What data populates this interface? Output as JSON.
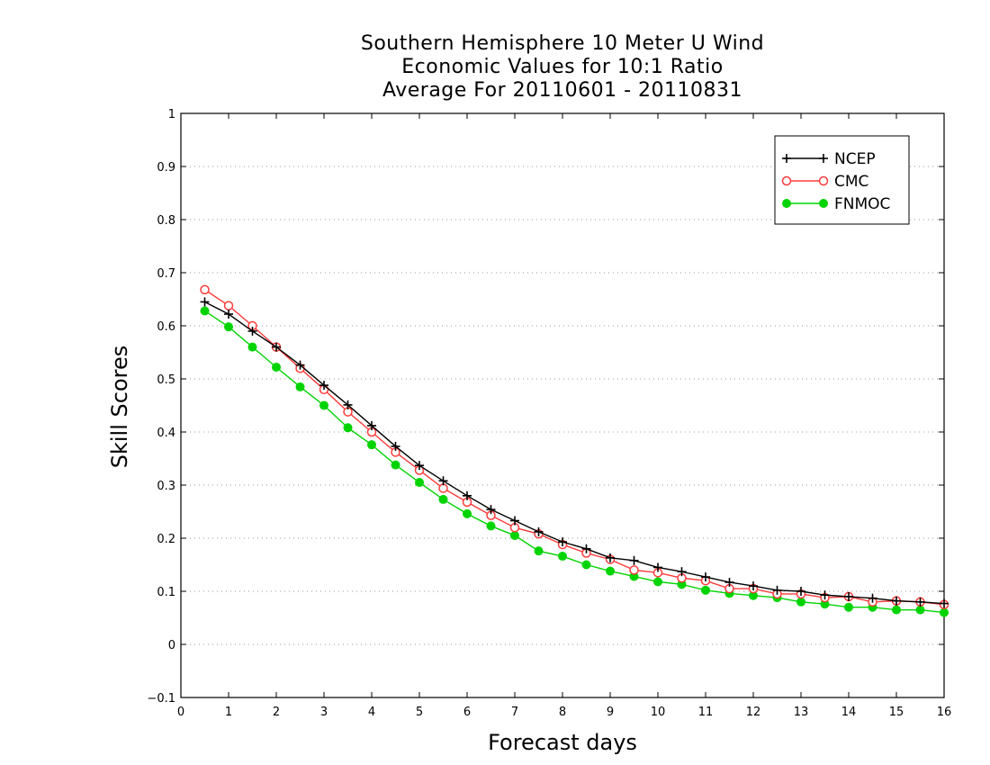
{
  "chart_data": {
    "type": "line",
    "title_lines": [
      "Southern Hemisphere 10 Meter U Wind",
      "Economic Values for 10:1 Ratio",
      "Average For 20110601 - 20110831"
    ],
    "xlabel": "Forecast days",
    "ylabel": "Skill Scores",
    "xlim": [
      0,
      16
    ],
    "ylim": [
      -0.1,
      1
    ],
    "xticks": [
      "0",
      "1",
      "2",
      "3",
      "4",
      "5",
      "6",
      "7",
      "8",
      "9",
      "10",
      "11",
      "12",
      "13",
      "14",
      "15",
      "16"
    ],
    "yticks": [
      "-0.1",
      "0",
      "0.1",
      "0.2",
      "0.3",
      "0.4",
      "0.5",
      "0.6",
      "0.7",
      "0.8",
      "0.9",
      "1"
    ],
    "grid": "horizontal-dotted",
    "legend_position": "top-right",
    "x": [
      0.5,
      1,
      1.5,
      2,
      2.5,
      3,
      3.5,
      4,
      4.5,
      5,
      5.5,
      6,
      6.5,
      7,
      7.5,
      8,
      8.5,
      9,
      9.5,
      10,
      10.5,
      11,
      11.5,
      12,
      12.5,
      13,
      13.5,
      14,
      14.5,
      15,
      15.5,
      16
    ],
    "series": [
      {
        "name": "NCEP",
        "color": "#000000",
        "marker": "plus",
        "values": [
          0.645,
          0.622,
          0.59,
          0.56,
          0.526,
          0.488,
          0.451,
          0.412,
          0.373,
          0.337,
          0.308,
          0.28,
          0.254,
          0.233,
          0.212,
          0.193,
          0.18,
          0.163,
          0.158,
          0.145,
          0.137,
          0.127,
          0.117,
          0.11,
          0.102,
          0.1,
          0.093,
          0.09,
          0.087,
          0.082,
          0.08,
          0.077
        ]
      },
      {
        "name": "CMC",
        "color": "#ff3b3b",
        "marker": "open-circle",
        "values": [
          0.668,
          0.638,
          0.6,
          0.56,
          0.52,
          0.48,
          0.438,
          0.4,
          0.362,
          0.328,
          0.294,
          0.268,
          0.243,
          0.22,
          0.208,
          0.188,
          0.172,
          0.16,
          0.14,
          0.135,
          0.125,
          0.12,
          0.105,
          0.105,
          0.095,
          0.095,
          0.088,
          0.09,
          0.08,
          0.082,
          0.08,
          0.075
        ]
      },
      {
        "name": "FNMOC",
        "color": "#00d400",
        "marker": "filled-circle",
        "values": [
          0.628,
          0.598,
          0.56,
          0.522,
          0.485,
          0.45,
          0.408,
          0.376,
          0.338,
          0.305,
          0.273,
          0.246,
          0.223,
          0.205,
          0.176,
          0.166,
          0.15,
          0.138,
          0.128,
          0.118,
          0.113,
          0.102,
          0.096,
          0.092,
          0.088,
          0.08,
          0.076,
          0.07,
          0.07,
          0.065,
          0.065,
          0.06
        ]
      }
    ]
  }
}
